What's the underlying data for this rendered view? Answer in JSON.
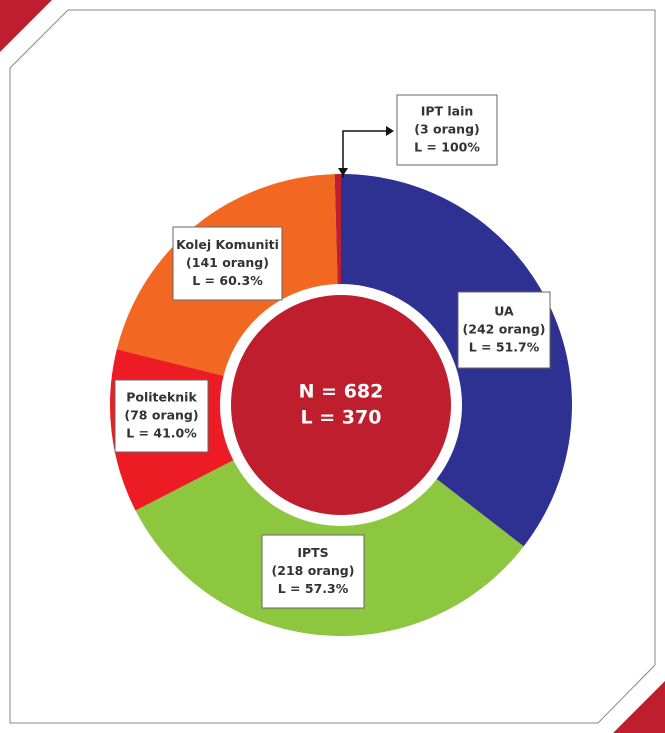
{
  "chart_data": {
    "type": "donut",
    "categories": [
      "UA",
      "IPTS",
      "Politeknik",
      "Kolej Komuniti",
      "IPT lain"
    ],
    "values": [
      242,
      218,
      78,
      141,
      3
    ],
    "value_labels": [
      "(242 orang)",
      "(218 orang)",
      "(78 orang)",
      "(141 orang)",
      "(3 orang)"
    ],
    "annotations": [
      "L = 51.7%",
      "L = 57.3%",
      "L = 41.0%",
      "L = 60.3%",
      "L = 100%"
    ],
    "colors": [
      "#2e3192",
      "#8dc63f",
      "#ed1c24",
      "#f26722",
      "#be1e2d"
    ],
    "center_labels": [
      "N = 682",
      "L = 370"
    ],
    "center_color": "#be1e2d"
  }
}
